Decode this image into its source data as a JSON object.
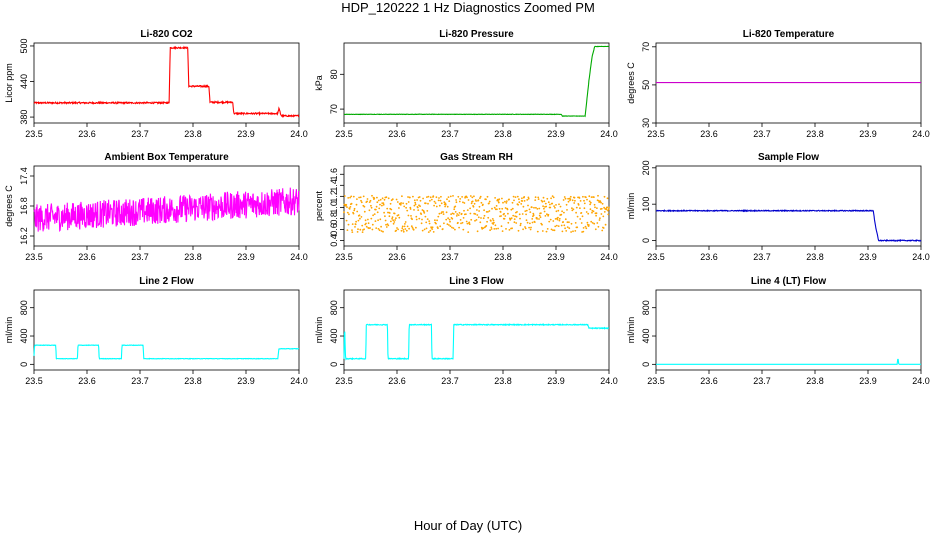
{
  "page": {
    "title": "HDP_120222  1 Hz Diagnostics Zoomed PM",
    "xlabel": "Hour of Day (UTC)"
  },
  "chart_data": [
    {
      "type": "line",
      "title": "Li-820 CO2",
      "ylabel": "Licor ppm",
      "color": "#ff0000",
      "xlim": [
        23.5,
        24.0
      ],
      "ylim": [
        370,
        505
      ],
      "xticks": [
        "23.5",
        "23.6",
        "23.7",
        "23.8",
        "23.9",
        "24.0"
      ],
      "yticks": [
        380,
        440,
        500
      ],
      "ytick_labels": [
        "380",
        "440",
        "500"
      ],
      "noise": 1.2,
      "x": [
        23.5,
        23.755,
        23.757,
        23.79,
        23.792,
        23.83,
        23.832,
        23.875,
        23.877,
        23.96,
        23.962,
        23.965,
        23.967,
        24.0
      ],
      "y": [
        404,
        404,
        497,
        497,
        432,
        432,
        405,
        405,
        386,
        386,
        395,
        386,
        382,
        382
      ]
    },
    {
      "type": "line",
      "title": "Li-820 Pressure",
      "ylabel": "kPa",
      "color": "#00aa00",
      "xlim": [
        23.5,
        24.0
      ],
      "ylim": [
        66,
        89
      ],
      "xticks": [
        "23.5",
        "23.6",
        "23.7",
        "23.8",
        "23.9",
        "24.0"
      ],
      "yticks": [
        70,
        80
      ],
      "ytick_labels": [
        "70",
        "80"
      ],
      "noise": 0.05,
      "x": [
        23.5,
        23.91,
        23.912,
        23.955,
        23.962,
        23.968,
        23.973,
        24.0
      ],
      "y": [
        68.5,
        68.5,
        68.0,
        68.0,
        78,
        85,
        88,
        88
      ]
    },
    {
      "type": "line",
      "title": "Li-820 Temperature",
      "ylabel": "degrees C",
      "color": "#cc00cc",
      "xlim": [
        23.5,
        24.0
      ],
      "ylim": [
        30,
        72
      ],
      "xticks": [
        "23.5",
        "23.6",
        "23.7",
        "23.8",
        "23.9",
        "24.0"
      ],
      "yticks": [
        30,
        50,
        70
      ],
      "ytick_labels": [
        "30",
        "50",
        "70"
      ],
      "noise": 0,
      "x": [
        23.5,
        24.0
      ],
      "y": [
        51.2,
        51.2
      ]
    },
    {
      "type": "line",
      "title": "Ambient Box Temperature",
      "ylabel": "degrees C",
      "color": "#ff00ff",
      "xlim": [
        23.5,
        24.0
      ],
      "ylim": [
        16.0,
        17.6
      ],
      "xticks": [
        "23.5",
        "23.6",
        "23.7",
        "23.8",
        "23.9",
        "24.0"
      ],
      "yticks": [
        16.2,
        16.8,
        17.4
      ],
      "ytick_labels": [
        "16.2",
        "16.8",
        "17.4"
      ],
      "noise": 0.28,
      "x": [
        23.5,
        24.0
      ],
      "y": [
        16.55,
        16.9
      ]
    },
    {
      "type": "scatter",
      "title": "Gas Stream RH",
      "ylabel": "percent",
      "color": "#ffa500",
      "xlim": [
        23.5,
        24.0
      ],
      "ylim": [
        0.3,
        1.75
      ],
      "xticks": [
        "23.5",
        "23.6",
        "23.7",
        "23.8",
        "23.9",
        "24.0"
      ],
      "yticks": [
        0.4,
        0.6,
        0.8,
        1.0,
        1.2,
        1.4,
        1.6
      ],
      "ytick_labels": [
        "0.4",
        "0.6",
        "0.8",
        "1.0",
        "1.2",
        "1.4",
        "1.6"
      ],
      "noise": 0.33,
      "x": [
        23.5,
        24.0
      ],
      "y": [
        0.88,
        0.88
      ]
    },
    {
      "type": "line",
      "title": "Sample Flow",
      "ylabel": "ml/min",
      "color": "#0000cc",
      "xlim": [
        23.5,
        24.0
      ],
      "ylim": [
        -15,
        205
      ],
      "xticks": [
        "23.5",
        "23.6",
        "23.7",
        "23.8",
        "23.9",
        "24.0"
      ],
      "yticks": [
        0,
        100,
        200
      ],
      "ytick_labels": [
        "0",
        "100",
        "200"
      ],
      "noise": 1.2,
      "x": [
        23.5,
        23.91,
        23.914,
        23.92,
        24.0
      ],
      "y": [
        82,
        82,
        40,
        0,
        0
      ]
    },
    {
      "type": "line",
      "title": "Line 2 Flow",
      "ylabel": "ml/min",
      "color": "#00ffff",
      "xlim": [
        23.5,
        24.0
      ],
      "ylim": [
        -80,
        1050
      ],
      "xticks": [
        "23.5",
        "23.6",
        "23.7",
        "23.8",
        "23.9",
        "24.0"
      ],
      "yticks": [
        0,
        400,
        800
      ],
      "ytick_labels": [
        "0",
        "400",
        "800"
      ],
      "noise": 3,
      "x": [
        23.5,
        23.501,
        23.541,
        23.542,
        23.582,
        23.583,
        23.622,
        23.623,
        23.665,
        23.666,
        23.706,
        23.707,
        23.96,
        23.962,
        24.0
      ],
      "y": [
        120,
        270,
        270,
        80,
        80,
        270,
        270,
        80,
        80,
        270,
        270,
        80,
        80,
        220,
        220
      ]
    },
    {
      "type": "line",
      "title": "Line 3 Flow",
      "ylabel": "ml/min",
      "color": "#00ffff",
      "xlim": [
        23.5,
        24.0
      ],
      "ylim": [
        -80,
        1050
      ],
      "xticks": [
        "23.5",
        "23.6",
        "23.7",
        "23.8",
        "23.9",
        "24.0"
      ],
      "yticks": [
        0,
        400,
        800
      ],
      "ytick_labels": [
        "0",
        "400",
        "800"
      ],
      "noise": 6,
      "x": [
        23.5,
        23.501,
        23.503,
        23.541,
        23.542,
        23.582,
        23.583,
        23.622,
        23.623,
        23.665,
        23.666,
        23.706,
        23.707,
        23.96,
        23.962,
        24.0
      ],
      "y": [
        80,
        560,
        80,
        80,
        560,
        560,
        80,
        80,
        560,
        560,
        80,
        80,
        560,
        560,
        510,
        510
      ]
    },
    {
      "type": "line",
      "title": "Line 4 (LT) Flow",
      "ylabel": "ml/min",
      "color": "#00ffff",
      "xlim": [
        23.5,
        24.0
      ],
      "ylim": [
        -80,
        1050
      ],
      "xticks": [
        "23.5",
        "23.6",
        "23.7",
        "23.8",
        "23.9",
        "24.0"
      ],
      "yticks": [
        0,
        400,
        800
      ],
      "ytick_labels": [
        "0",
        "400",
        "800"
      ],
      "noise": 0,
      "x": [
        23.5,
        23.955,
        23.956,
        23.957,
        23.958,
        23.959,
        24.0
      ],
      "y": [
        0,
        0,
        70,
        70,
        10,
        0,
        0
      ]
    }
  ]
}
